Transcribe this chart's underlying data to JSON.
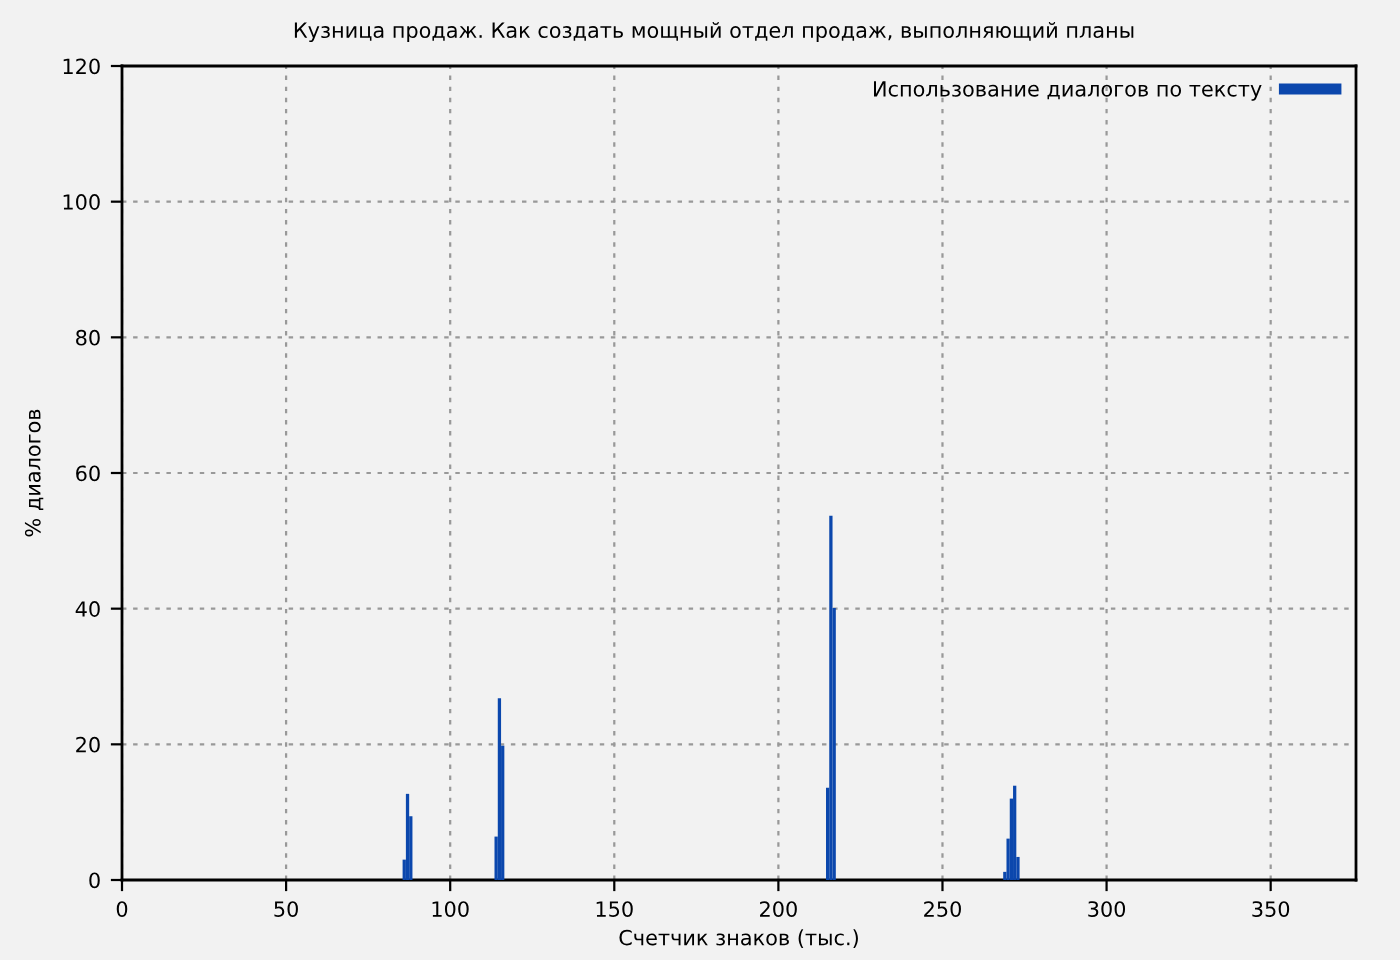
{
  "chart_data": {
    "type": "bar",
    "title": "Кузница продаж. Как создать мощный отдел продаж, выполняющий планы",
    "xlabel": "Счетчик знаков (тыс.)",
    "ylabel": "% диалогов",
    "series": [
      {
        "name": "Использование диалогов по тексту",
        "color": "#0b47ad",
        "x": [
          86,
          87,
          88,
          114,
          115,
          116,
          215,
          216,
          217,
          269,
          270,
          271,
          272,
          273
        ],
        "values": [
          3.0,
          12.7,
          9.4,
          6.4,
          26.8,
          19.8,
          13.6,
          53.7,
          40.1,
          1.2,
          6.1,
          12.0,
          13.9,
          3.4
        ]
      }
    ],
    "xlim": [
      0,
      376
    ],
    "xticks": [
      0,
      50,
      100,
      150,
      200,
      250,
      300,
      350
    ],
    "ylim": [
      0,
      120
    ],
    "yticks": [
      0,
      20,
      40,
      60,
      80,
      100,
      120
    ],
    "grid": true,
    "legend": "top right"
  }
}
